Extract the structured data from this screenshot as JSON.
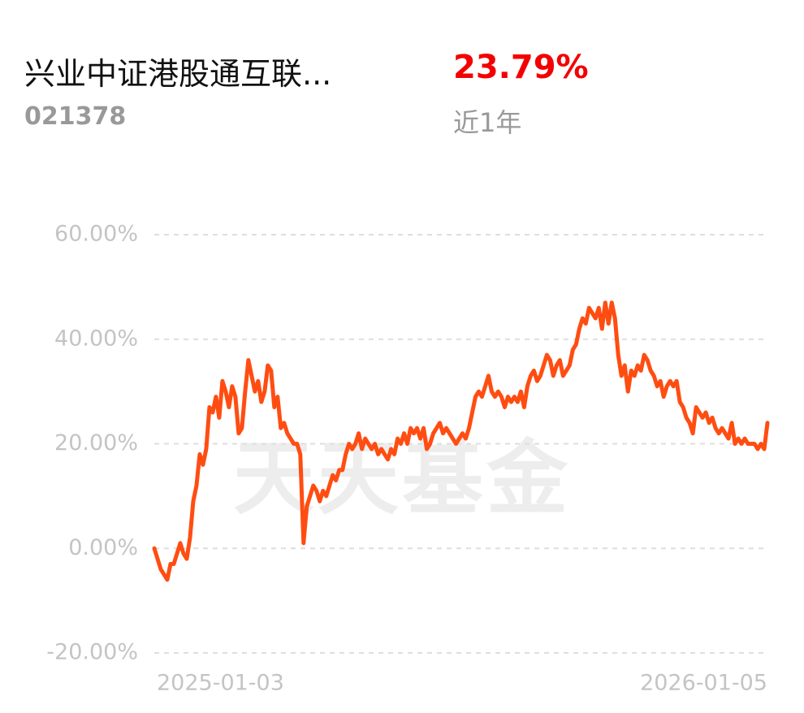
{
  "header": {
    "fund_name": "兴业中证港股通互联...",
    "fund_code": "021378",
    "return_value": "23.79%",
    "return_period": "近1年"
  },
  "chart_data": {
    "type": "line",
    "watermark": "天天基金",
    "categories": [
      "2025-01-03",
      null,
      null,
      null,
      null,
      null,
      null,
      null,
      null,
      null,
      null,
      null,
      null,
      null,
      null,
      null,
      null,
      null,
      null,
      null,
      null,
      null,
      null,
      null,
      null,
      null,
      null,
      null,
      null,
      null,
      null,
      null,
      null,
      null,
      null,
      null,
      null,
      null,
      null,
      null,
      null,
      null,
      null,
      null,
      null,
      null,
      null,
      null,
      null,
      null,
      null,
      null,
      null,
      null,
      null,
      null,
      null,
      null,
      null,
      null,
      null,
      null,
      null,
      null,
      null,
      null,
      null,
      null,
      null,
      null,
      null,
      null,
      null,
      null,
      null,
      null,
      null,
      null,
      null,
      null,
      null,
      null,
      null,
      null,
      null,
      null,
      null,
      null,
      null,
      null,
      null,
      null,
      null,
      null,
      null,
      null,
      null,
      null,
      null,
      null,
      null,
      null,
      null,
      null,
      null,
      null,
      null,
      null,
      null,
      null,
      null,
      null,
      null,
      null,
      null,
      null,
      null,
      null,
      null,
      null,
      null,
      null,
      null,
      null,
      null,
      null,
      null,
      null,
      null,
      null,
      null,
      null,
      null,
      null,
      null,
      null,
      null,
      null,
      null,
      null,
      null,
      null,
      null,
      null,
      null,
      null,
      null,
      null,
      null,
      null,
      null,
      null,
      null,
      null,
      null,
      null,
      null,
      null,
      null,
      null,
      null,
      null,
      null,
      null,
      null,
      null,
      null,
      null,
      null,
      null,
      null,
      null,
      null,
      null,
      null,
      null,
      null,
      null,
      null,
      null,
      null,
      null,
      null,
      null,
      null,
      null,
      null,
      null,
      null,
      "2026-01-05"
    ],
    "series": [
      {
        "color": "#ff4d12",
        "values": [
          0,
          -2,
          -4,
          -5,
          -6,
          -3,
          -3,
          -1,
          1,
          -1,
          -2,
          2,
          9,
          12,
          18,
          16,
          19,
          27,
          26,
          29,
          25,
          32,
          30,
          27,
          31,
          29,
          22,
          23,
          30,
          36,
          33,
          30,
          32,
          28,
          30,
          35,
          34,
          27,
          29,
          23,
          24,
          22,
          21,
          20,
          20,
          18,
          1,
          8,
          10,
          12,
          11,
          9,
          11,
          10,
          12,
          14,
          13,
          15,
          15,
          18,
          20,
          19,
          20,
          22,
          19,
          21,
          20,
          19,
          20,
          18,
          19,
          18,
          17,
          19,
          18,
          21,
          20,
          22,
          20,
          23,
          22,
          23,
          21,
          23,
          19,
          20,
          22,
          23,
          24,
          22,
          23,
          22,
          21,
          20,
          21,
          22,
          21,
          23,
          26,
          29,
          30,
          29,
          31,
          33,
          30,
          29,
          30,
          29,
          27,
          29,
          28,
          29,
          28,
          30,
          27,
          31,
          33,
          34,
          32,
          33,
          35,
          37,
          36,
          33,
          35,
          36,
          33,
          34,
          35,
          38,
          39,
          42,
          44,
          43,
          46,
          45,
          44,
          46,
          42,
          47,
          43,
          47,
          44,
          37,
          33,
          35,
          30,
          34,
          33,
          35,
          34,
          37,
          36,
          34,
          33,
          31,
          32,
          29,
          31,
          32,
          31,
          32,
          28,
          27,
          25,
          24,
          22,
          27,
          26,
          25,
          26,
          24,
          25,
          23,
          22,
          23,
          22,
          21,
          24,
          20,
          21,
          20,
          21,
          20,
          20,
          20,
          19,
          20,
          19,
          24
        ]
      }
    ],
    "ylim": [
      -20,
      60
    ],
    "yticks": [
      {
        "value": -20,
        "label": "-20.00%"
      },
      {
        "value": 0,
        "label": "0.00%"
      },
      {
        "value": 20,
        "label": "20.00%"
      },
      {
        "value": 40,
        "label": "40.00%"
      },
      {
        "value": 60,
        "label": "60.00%"
      }
    ],
    "grid": true
  }
}
